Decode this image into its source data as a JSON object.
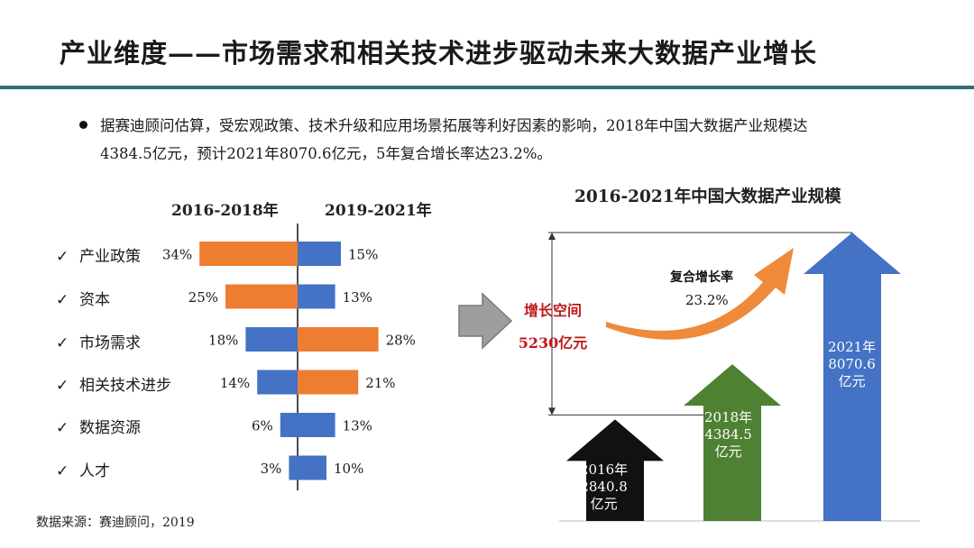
{
  "title": "产业维度——市场需求和相关技术进步驱动未来大数据产业增长",
  "bullet": {
    "line1": "据赛迪顾问估算，受宏观政策、技术升级和应用场景拓展等利好因素的影响，2018年中国大数据产业规模达",
    "line2": "4384.5亿元，预计2021年8070.6亿元，5年复合增长率达23.2%。"
  },
  "source": "数据来源：赛迪顾问，2019",
  "colors": {
    "orange": "#ed7d31",
    "blue": "#4472c4",
    "black_arrow": "#111111",
    "green_arrow": "#4f8133",
    "blue_arrow": "#4472c4",
    "growth_red": "#c0171b",
    "accent_rule": "#2f6f79"
  },
  "check_icon": "✓",
  "chart_data": [
    {
      "type": "bar",
      "orientation": "horizontal-diverging",
      "categories": [
        "产业政策",
        "资本",
        "市场需求",
        "相关技术进步",
        "数据资源",
        "人才"
      ],
      "series": [
        {
          "name": "2016-2018年",
          "values": [
            34,
            25,
            18,
            14,
            6,
            3
          ],
          "value_labels": [
            "34%",
            "25%",
            "18%",
            "14%",
            "6%",
            "3%"
          ],
          "colors": [
            "#ed7d31",
            "#ed7d31",
            "#4472c4",
            "#4472c4",
            "#4472c4",
            "#4472c4"
          ]
        },
        {
          "name": "2019-2021年",
          "values": [
            15,
            13,
            28,
            21,
            13,
            10
          ],
          "value_labels": [
            "15%",
            "13%",
            "28%",
            "21%",
            "13%",
            "10%"
          ],
          "colors": [
            "#4472c4",
            "#4472c4",
            "#ed7d31",
            "#ed7d31",
            "#4472c4",
            "#4472c4"
          ]
        }
      ],
      "units": "%"
    },
    {
      "type": "bar",
      "title": "2016-2021年中国大数据产业规模",
      "categories": [
        "2016年",
        "2018年",
        "2021年"
      ],
      "values": [
        2840.8,
        4384.5,
        8070.6
      ],
      "value_labels": [
        "2840.8",
        "4384.5",
        "8070.6"
      ],
      "unit": "亿元",
      "bar_colors": [
        "#111111",
        "#4f8133",
        "#4472c4"
      ],
      "annotations": {
        "growth_space_label": "增长空间",
        "growth_space_value": "5230亿元",
        "cagr_label": "复合增长率",
        "cagr_value": "23.2%"
      }
    }
  ]
}
